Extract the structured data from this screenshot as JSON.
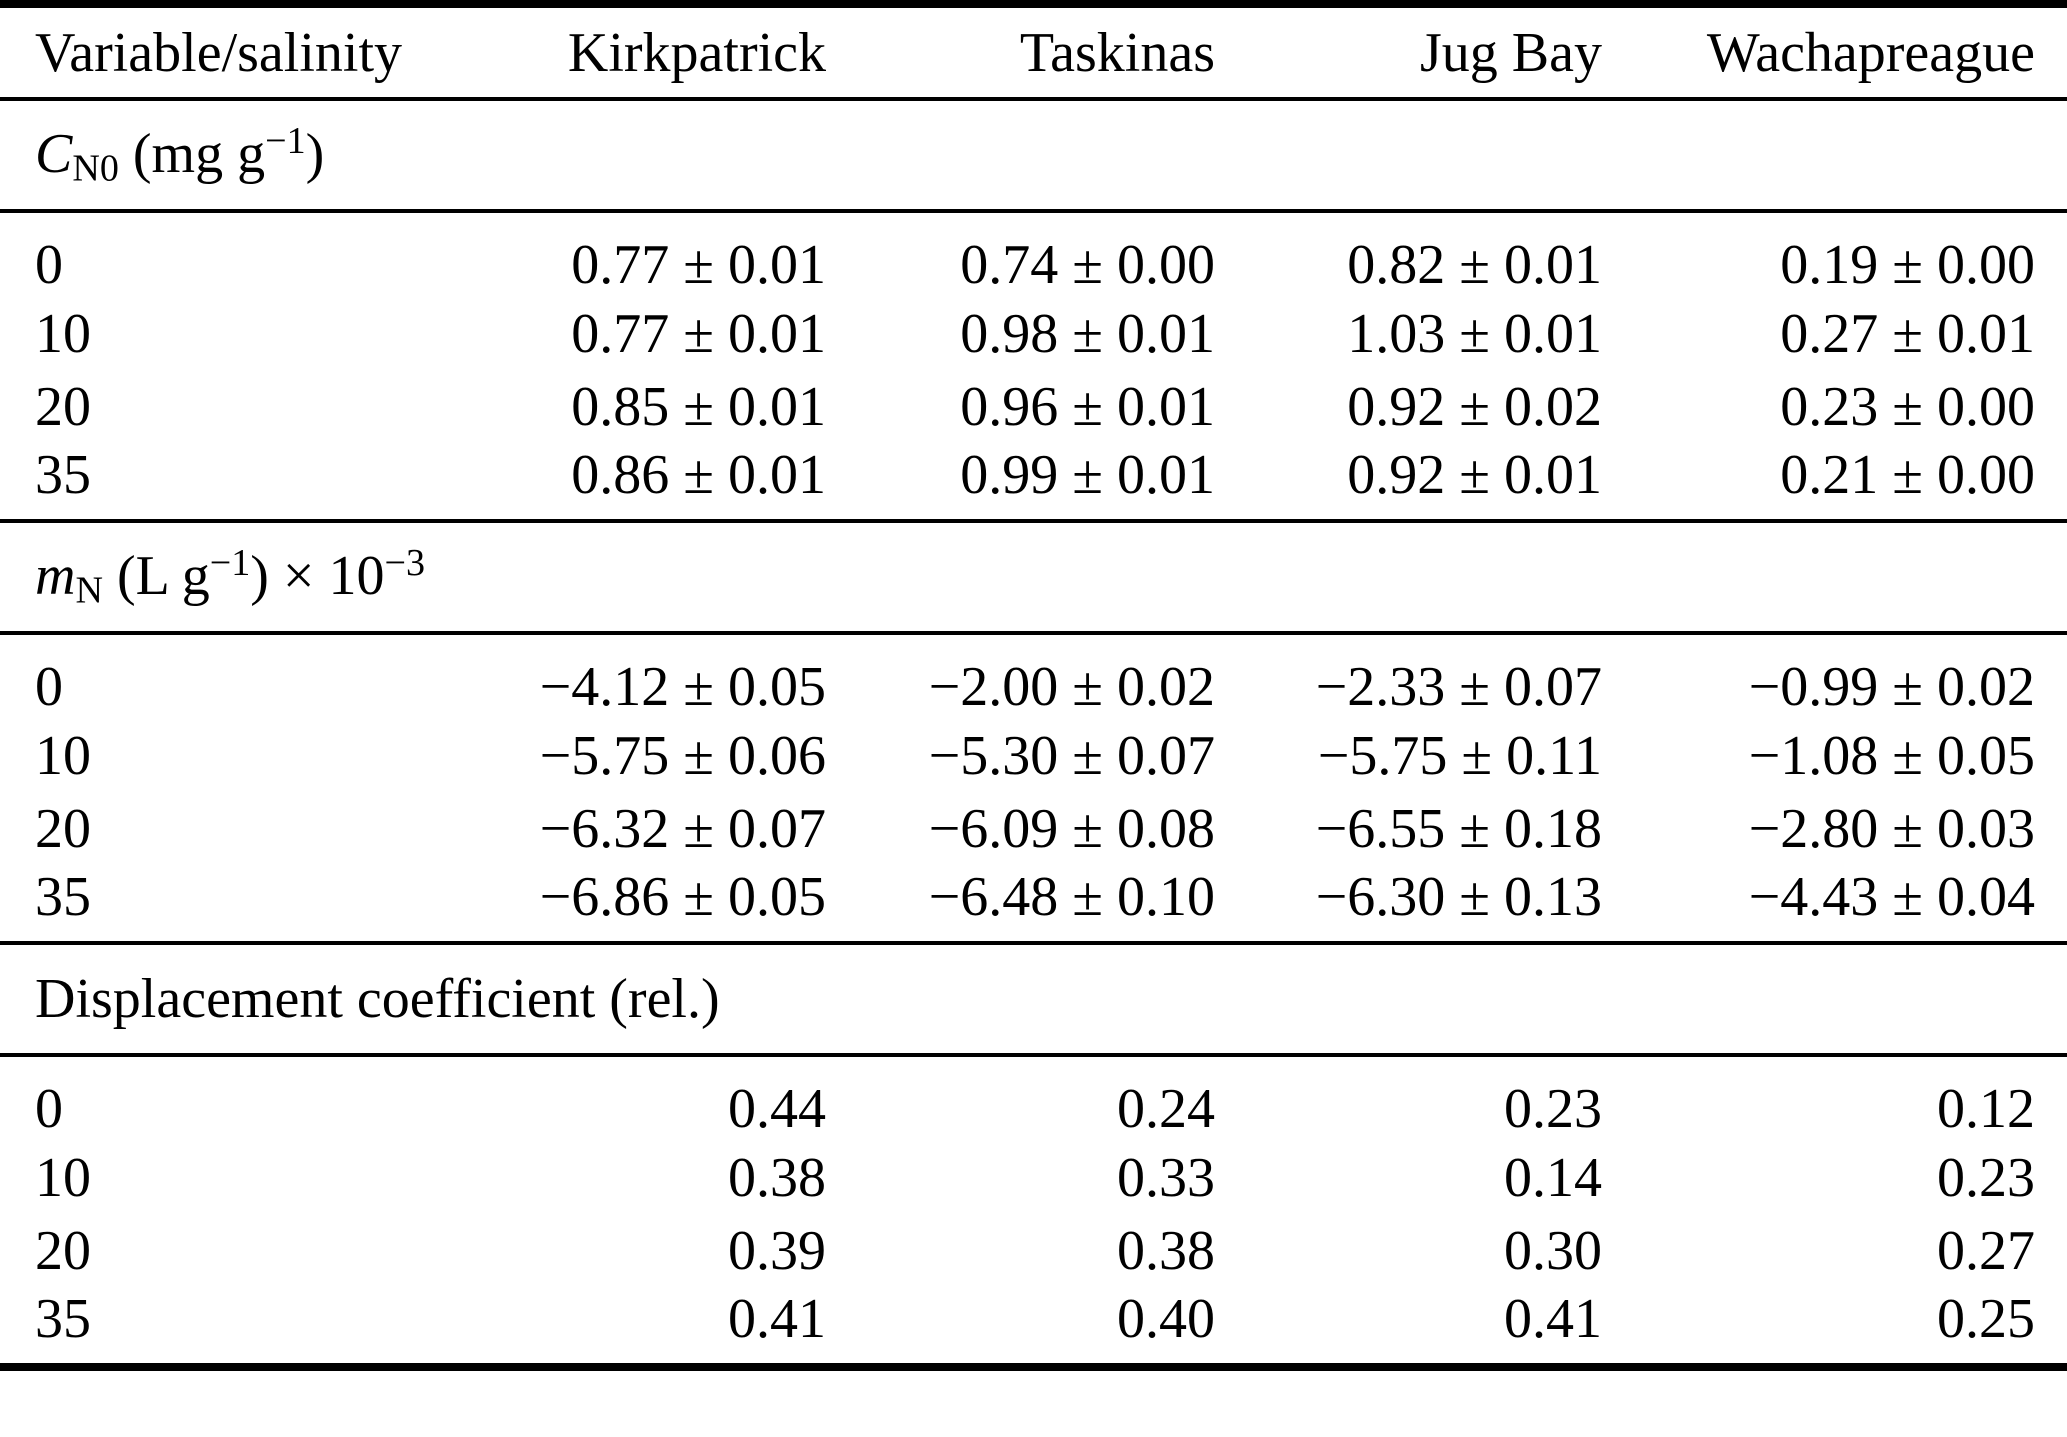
{
  "page": {
    "background_color": "#ffffff",
    "text_color": "#000000",
    "rule_color": "#000000"
  },
  "table": {
    "columns": [
      {
        "label": "Variable/salinity",
        "align": "left"
      },
      {
        "label": "Kirkpatrick",
        "align": "right"
      },
      {
        "label": "Taskinas",
        "align": "right"
      },
      {
        "label": "Jug Bay",
        "align": "right"
      },
      {
        "label": "Wachapreague",
        "align": "right"
      }
    ],
    "sections": [
      {
        "id": "cn0",
        "title_plain": "C_N0 (mg g^-1)",
        "title_runs": [
          {
            "text": "C",
            "style": "italic"
          },
          {
            "text": "N0",
            "style": "sub"
          },
          {
            "text": " (mg g",
            "style": "normal"
          },
          {
            "text": "−1",
            "style": "sup"
          },
          {
            "text": ")",
            "style": "normal"
          }
        ],
        "rows": [
          {
            "salinity": "0",
            "values": [
              "0.77 ± 0.01",
              "0.74 ± 0.00",
              "0.82 ± 0.01",
              "0.19 ± 0.00"
            ]
          },
          {
            "salinity": "10",
            "values": [
              "0.77 ± 0.01",
              "0.98 ± 0.01",
              "1.03 ± 0.01",
              "0.27 ± 0.01"
            ]
          },
          {
            "salinity": "20",
            "values": [
              "0.85 ± 0.01",
              "0.96 ± 0.01",
              "0.92 ± 0.02",
              "0.23 ± 0.00"
            ]
          },
          {
            "salinity": "35",
            "values": [
              "0.86 ± 0.01",
              "0.99 ± 0.01",
              "0.92 ± 0.01",
              "0.21 ± 0.00"
            ]
          }
        ]
      },
      {
        "id": "mn",
        "title_plain": "m_N (L g^-1) x 10^-3",
        "title_runs": [
          {
            "text": "m",
            "style": "italic"
          },
          {
            "text": "N",
            "style": "sub"
          },
          {
            "text": " (L g",
            "style": "normal"
          },
          {
            "text": "−1",
            "style": "sup"
          },
          {
            "text": ") × 10",
            "style": "normal"
          },
          {
            "text": "−3",
            "style": "sup"
          }
        ],
        "rows": [
          {
            "salinity": "0",
            "values": [
              "−4.12 ± 0.05",
              "−2.00 ± 0.02",
              "−2.33 ± 0.07",
              "−0.99 ± 0.02"
            ]
          },
          {
            "salinity": "10",
            "values": [
              "−5.75 ± 0.06",
              "−5.30 ± 0.07",
              "−5.75 ± 0.11",
              "−1.08 ± 0.05"
            ]
          },
          {
            "salinity": "20",
            "values": [
              "−6.32 ± 0.07",
              "−6.09 ± 0.08",
              "−6.55 ± 0.18",
              "−2.80 ± 0.03"
            ]
          },
          {
            "salinity": "35",
            "values": [
              "−6.86 ± 0.05",
              "−6.48 ± 0.10",
              "−6.30 ± 0.13",
              "−4.43 ± 0.04"
            ]
          }
        ]
      },
      {
        "id": "displacement",
        "title_plain": "Displacement coefficient (rel.)",
        "title_runs": [
          {
            "text": "Displacement coefficient (rel.)",
            "style": "normal"
          }
        ],
        "rows": [
          {
            "salinity": "0",
            "values": [
              "0.44",
              "0.24",
              "0.23",
              "0.12"
            ]
          },
          {
            "salinity": "10",
            "values": [
              "0.38",
              "0.33",
              "0.14",
              "0.23"
            ]
          },
          {
            "salinity": "20",
            "values": [
              "0.39",
              "0.38",
              "0.30",
              "0.27"
            ]
          },
          {
            "salinity": "35",
            "values": [
              "0.41",
              "0.40",
              "0.41",
              "0.25"
            ]
          }
        ]
      }
    ]
  }
}
